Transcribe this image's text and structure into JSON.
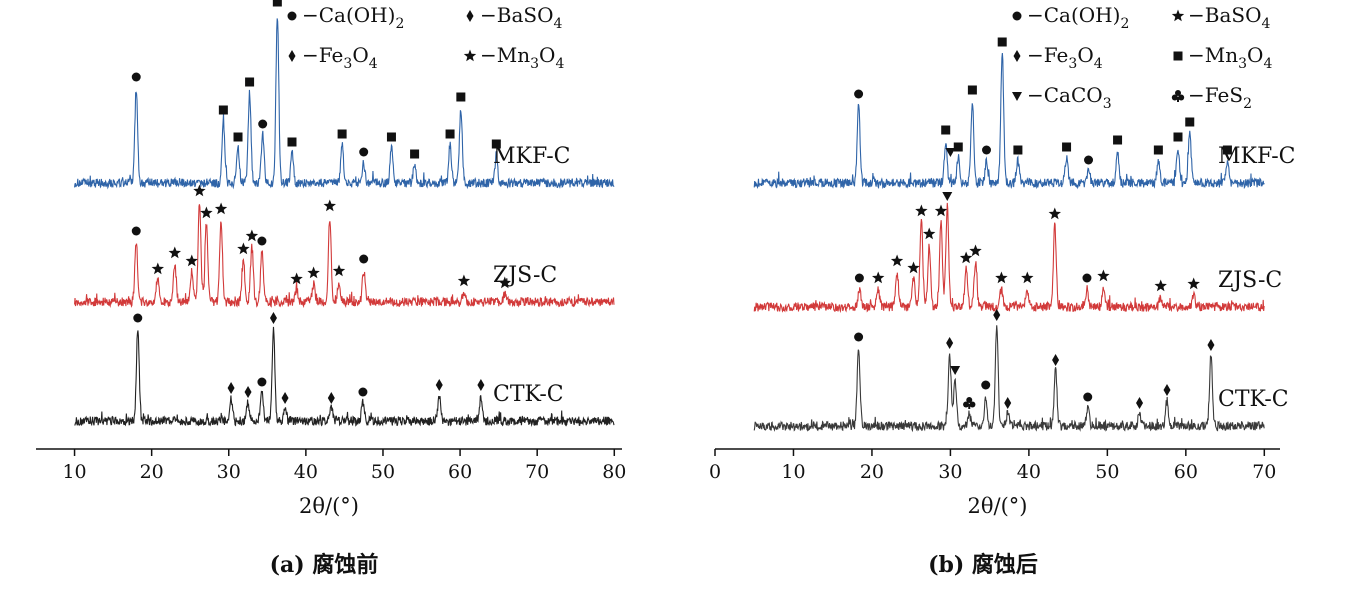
{
  "charts": [
    {
      "type": "line",
      "caption": "(a) 腐蚀前",
      "xlabel": "2θ/(°)",
      "xlim": [
        5,
        81
      ],
      "xticks": [
        10,
        20,
        30,
        40,
        50,
        60,
        70,
        80
      ],
      "legend": [
        {
          "marker": "circle",
          "label": "−Ca(OH)",
          "sub": "2"
        },
        {
          "marker": "diamond",
          "label": "−BaSO",
          "sub": "4"
        },
        {
          "marker": "diamond",
          "label": "−Fe",
          "sub": "3",
          "label2": "O",
          "sub2": "4"
        },
        {
          "marker": "star",
          "label": "−Mn",
          "sub": "3",
          "label2": "O",
          "sub2": "4"
        }
      ],
      "series": [
        {
          "name": "MKF-C",
          "color": "#2f64a8",
          "range": [
            10,
            80
          ],
          "peaks": [
            [
              18.0,
              0.95
            ],
            [
              29.3,
              0.62
            ],
            [
              31.2,
              0.35
            ],
            [
              32.7,
              0.9
            ],
            [
              34.4,
              0.48
            ],
            [
              36.3,
              1.7
            ],
            [
              38.2,
              0.3
            ],
            [
              44.7,
              0.38
            ],
            [
              47.5,
              0.2
            ],
            [
              51.1,
              0.35
            ],
            [
              54.1,
              0.18
            ],
            [
              58.7,
              0.38
            ],
            [
              60.1,
              0.75
            ],
            [
              64.7,
              0.28
            ]
          ],
          "markers": [
            {
              "x": 18.0,
              "m": "circle"
            },
            {
              "x": 29.3,
              "m": "square"
            },
            {
              "x": 31.2,
              "m": "square"
            },
            {
              "x": 32.7,
              "m": "square"
            },
            {
              "x": 34.4,
              "m": "circle"
            },
            {
              "x": 36.3,
              "m": "square"
            },
            {
              "x": 38.2,
              "m": "square"
            },
            {
              "x": 44.7,
              "m": "square"
            },
            {
              "x": 47.5,
              "m": "circle"
            },
            {
              "x": 51.1,
              "m": "square"
            },
            {
              "x": 54.1,
              "m": "square"
            },
            {
              "x": 58.7,
              "m": "square"
            },
            {
              "x": 60.1,
              "m": "square"
            },
            {
              "x": 64.7,
              "m": "square"
            }
          ]
        },
        {
          "name": "ZJS-C",
          "color": "#d23a3a",
          "range": [
            10,
            80
          ],
          "peaks": [
            [
              18.0,
              0.6
            ],
            [
              20.8,
              0.22
            ],
            [
              23.0,
              0.38
            ],
            [
              25.2,
              0.3
            ],
            [
              26.2,
              1.0
            ],
            [
              27.1,
              0.78
            ],
            [
              29.0,
              0.82
            ],
            [
              31.9,
              0.42
            ],
            [
              33.0,
              0.55
            ],
            [
              34.3,
              0.5
            ],
            [
              38.8,
              0.12
            ],
            [
              41.0,
              0.18
            ],
            [
              43.1,
              0.85
            ],
            [
              44.3,
              0.2
            ],
            [
              47.5,
              0.32
            ],
            [
              60.5,
              0.1
            ],
            [
              65.8,
              0.08
            ]
          ],
          "markers": [
            {
              "x": 18.0,
              "m": "circle"
            },
            {
              "x": 20.8,
              "m": "star"
            },
            {
              "x": 23.0,
              "m": "star"
            },
            {
              "x": 25.2,
              "m": "star"
            },
            {
              "x": 26.2,
              "m": "star"
            },
            {
              "x": 27.1,
              "m": "star"
            },
            {
              "x": 29.0,
              "m": "star"
            },
            {
              "x": 31.9,
              "m": "star"
            },
            {
              "x": 33.0,
              "m": "star"
            },
            {
              "x": 34.3,
              "m": "circle"
            },
            {
              "x": 38.8,
              "m": "star"
            },
            {
              "x": 41.0,
              "m": "star"
            },
            {
              "x": 43.1,
              "m": "star"
            },
            {
              "x": 44.3,
              "m": "star"
            },
            {
              "x": 47.5,
              "m": "circle"
            },
            {
              "x": 60.5,
              "m": "star"
            },
            {
              "x": 65.8,
              "m": "star"
            }
          ]
        },
        {
          "name": "CTK-C",
          "color": "#222222",
          "range": [
            10,
            80
          ],
          "peaks": [
            [
              18.2,
              0.92
            ],
            [
              30.3,
              0.22
            ],
            [
              32.5,
              0.18
            ],
            [
              34.3,
              0.28
            ],
            [
              35.8,
              0.92
            ],
            [
              37.3,
              0.12
            ],
            [
              43.3,
              0.12
            ],
            [
              47.4,
              0.18
            ],
            [
              57.3,
              0.25
            ],
            [
              62.7,
              0.25
            ]
          ],
          "markers": [
            {
              "x": 18.2,
              "m": "circle"
            },
            {
              "x": 30.3,
              "m": "diamond"
            },
            {
              "x": 32.5,
              "m": "diamond"
            },
            {
              "x": 34.3,
              "m": "circle"
            },
            {
              "x": 35.8,
              "m": "diamond"
            },
            {
              "x": 37.3,
              "m": "diamond"
            },
            {
              "x": 43.3,
              "m": "diamond"
            },
            {
              "x": 47.4,
              "m": "circle"
            },
            {
              "x": 57.3,
              "m": "diamond"
            },
            {
              "x": 62.7,
              "m": "diamond"
            }
          ]
        }
      ]
    },
    {
      "type": "line",
      "caption": "(b) 腐蚀后",
      "xlabel": "2θ/(°)",
      "xlim": [
        0,
        72
      ],
      "xticks": [
        0,
        10,
        20,
        30,
        40,
        50,
        60,
        70
      ],
      "legend": [
        {
          "marker": "circle",
          "label": "−Ca(OH)",
          "sub": "2"
        },
        {
          "marker": "star",
          "label": "−BaSO",
          "sub": "4"
        },
        {
          "marker": "diamond",
          "label": "−Fe",
          "sub": "3",
          "label2": "O",
          "sub2": "4"
        },
        {
          "marker": "square",
          "label": "−Mn",
          "sub": "3",
          "label2": "O",
          "sub2": "4"
        },
        {
          "marker": "triangle",
          "label": "−CaCO",
          "sub": "3"
        },
        {
          "marker": "club",
          "label": "−FeS",
          "sub": "2"
        }
      ],
      "series": [
        {
          "name": "MKF-C",
          "color": "#2f64a8",
          "range": [
            5,
            70
          ],
          "peaks": [
            [
              18.3,
              0.78
            ],
            [
              29.4,
              0.42
            ],
            [
              31.0,
              0.25
            ],
            [
              32.8,
              0.82
            ],
            [
              34.6,
              0.22
            ],
            [
              36.6,
              1.3
            ],
            [
              38.6,
              0.22
            ],
            [
              44.8,
              0.25
            ],
            [
              47.6,
              0.12
            ],
            [
              51.3,
              0.32
            ],
            [
              56.5,
              0.22
            ],
            [
              59.0,
              0.35
            ],
            [
              60.5,
              0.5
            ],
            [
              65.3,
              0.22
            ]
          ],
          "markers": [
            {
              "x": 18.3,
              "m": "circle"
            },
            {
              "x": 29.4,
              "m": "square"
            },
            {
              "x": 30.0,
              "m": "triangle"
            },
            {
              "x": 31.0,
              "m": "square"
            },
            {
              "x": 32.8,
              "m": "square"
            },
            {
              "x": 34.6,
              "m": "circle"
            },
            {
              "x": 36.6,
              "m": "square"
            },
            {
              "x": 38.6,
              "m": "square"
            },
            {
              "x": 44.8,
              "m": "square"
            },
            {
              "x": 47.6,
              "m": "circle"
            },
            {
              "x": 51.3,
              "m": "square"
            },
            {
              "x": 56.5,
              "m": "square"
            },
            {
              "x": 59.0,
              "m": "square"
            },
            {
              "x": 60.5,
              "m": "square"
            },
            {
              "x": 65.3,
              "m": "square"
            }
          ]
        },
        {
          "name": "ZJS-C",
          "color": "#d23a3a",
          "range": [
            5,
            70
          ],
          "peaks": [
            [
              18.4,
              0.18
            ],
            [
              20.8,
              0.18
            ],
            [
              23.2,
              0.35
            ],
            [
              25.3,
              0.28
            ],
            [
              26.3,
              0.85
            ],
            [
              27.3,
              0.62
            ],
            [
              28.8,
              0.85
            ],
            [
              29.6,
              1.0
            ],
            [
              32.0,
              0.38
            ],
            [
              33.2,
              0.45
            ],
            [
              36.5,
              0.18
            ],
            [
              39.8,
              0.18
            ],
            [
              43.3,
              0.82
            ],
            [
              47.4,
              0.18
            ],
            [
              49.5,
              0.2
            ],
            [
              56.8,
              0.1
            ],
            [
              61.0,
              0.12
            ]
          ],
          "markers": [
            {
              "x": 18.4,
              "m": "circle"
            },
            {
              "x": 20.8,
              "m": "star"
            },
            {
              "x": 23.2,
              "m": "star"
            },
            {
              "x": 25.3,
              "m": "star"
            },
            {
              "x": 26.3,
              "m": "star"
            },
            {
              "x": 27.3,
              "m": "star"
            },
            {
              "x": 28.8,
              "m": "star"
            },
            {
              "x": 29.6,
              "m": "triangle"
            },
            {
              "x": 32.0,
              "m": "star"
            },
            {
              "x": 33.2,
              "m": "star"
            },
            {
              "x": 36.5,
              "m": "star"
            },
            {
              "x": 39.8,
              "m": "star"
            },
            {
              "x": 43.3,
              "m": "star"
            },
            {
              "x": 47.4,
              "m": "circle"
            },
            {
              "x": 49.5,
              "m": "star"
            },
            {
              "x": 56.8,
              "m": "star"
            },
            {
              "x": 61.0,
              "m": "star"
            }
          ]
        },
        {
          "name": "CTK-C",
          "color": "#3a3a3a",
          "range": [
            5,
            70
          ],
          "peaks": [
            [
              18.3,
              0.78
            ],
            [
              29.9,
              0.72
            ],
            [
              30.6,
              0.45
            ],
            [
              32.4,
              0.12
            ],
            [
              34.5,
              0.3
            ],
            [
              35.9,
              1.0
            ],
            [
              37.3,
              0.12
            ],
            [
              43.4,
              0.55
            ],
            [
              47.5,
              0.18
            ],
            [
              54.1,
              0.12
            ],
            [
              57.6,
              0.25
            ],
            [
              63.2,
              0.7
            ]
          ],
          "markers": [
            {
              "x": 18.3,
              "m": "circle"
            },
            {
              "x": 29.9,
              "m": "diamond"
            },
            {
              "x": 30.6,
              "m": "triangle"
            },
            {
              "x": 32.4,
              "m": "club"
            },
            {
              "x": 34.5,
              "m": "circle"
            },
            {
              "x": 35.9,
              "m": "diamond"
            },
            {
              "x": 37.3,
              "m": "diamond"
            },
            {
              "x": 43.4,
              "m": "diamond"
            },
            {
              "x": 47.5,
              "m": "circle"
            },
            {
              "x": 54.1,
              "m": "diamond"
            },
            {
              "x": 57.6,
              "m": "diamond"
            },
            {
              "x": 63.2,
              "m": "diamond"
            }
          ]
        }
      ]
    }
  ]
}
